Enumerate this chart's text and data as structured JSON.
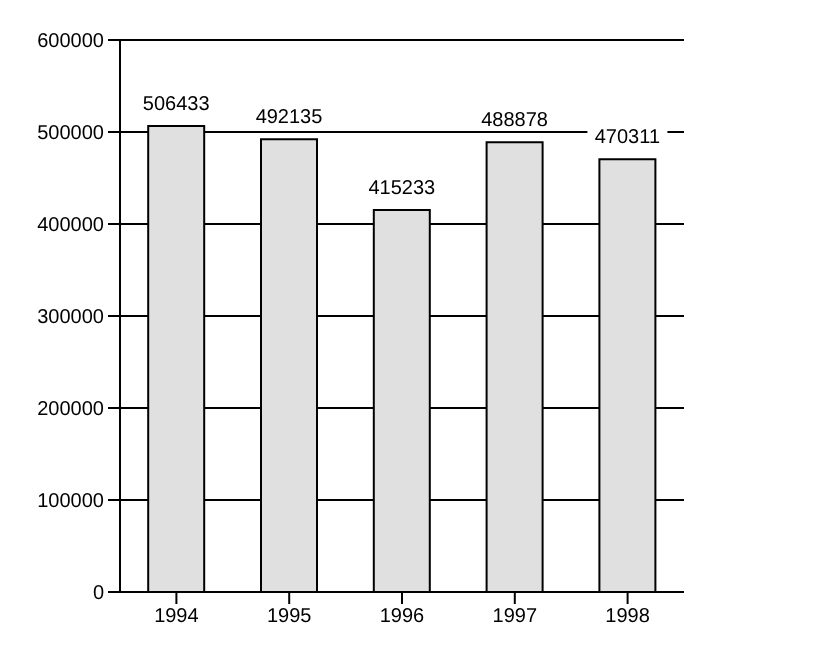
{
  "chart_data": {
    "type": "bar",
    "categories": [
      "1994",
      "1995",
      "1996",
      "1997",
      "1998"
    ],
    "values": [
      506433,
      492135,
      415233,
      488878,
      470311
    ],
    "color": "#e0e0e0",
    "ylim": [
      0,
      600000
    ],
    "yticks": [
      0,
      100000,
      200000,
      300000,
      400000,
      500000,
      600000
    ],
    "grid": "y",
    "data_labels": true
  }
}
